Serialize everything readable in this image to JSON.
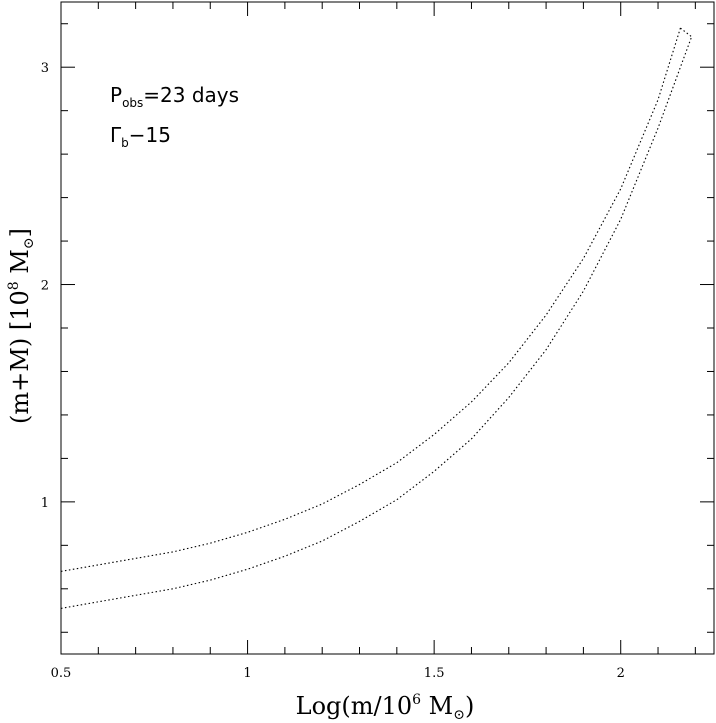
{
  "chart_data": {
    "type": "line",
    "title": "",
    "xlabel": {
      "text": "Log(m/10",
      "sup": "6",
      "text2": " M",
      "sub": "⊙",
      "text3": ")"
    },
    "ylabel": {
      "text": "(m+M)  [10",
      "sup": "8",
      "text2": " M",
      "sub": "⊙",
      "text3": "]"
    },
    "xlim": [
      0.5,
      2.25
    ],
    "ylim": [
      0.3,
      3.3
    ],
    "x_ticks": [
      "0.5",
      "1",
      "1.5",
      "2"
    ],
    "x_tick_values": [
      0.5,
      1.0,
      1.5,
      2.0
    ],
    "y_ticks": [
      "1",
      "2",
      "3"
    ],
    "y_tick_values": [
      1,
      2,
      3
    ],
    "line_style": "dotted",
    "annotations": [
      {
        "main": "P",
        "sub": "obs",
        "rest": "=23 days"
      },
      {
        "main": "Γ",
        "sub": "b",
        "rest": "−15"
      }
    ],
    "series": [
      {
        "x": [
          0.5,
          0.6,
          0.7,
          0.8,
          0.9,
          1.0,
          1.1,
          1.2,
          1.3,
          1.4,
          1.5,
          1.6,
          1.7,
          1.8,
          1.9,
          2.0,
          2.1,
          2.16
        ],
        "values": [
          0.68,
          0.71,
          0.74,
          0.77,
          0.81,
          0.86,
          0.92,
          0.99,
          1.08,
          1.18,
          1.31,
          1.46,
          1.64,
          1.86,
          2.12,
          2.44,
          2.85,
          3.18
        ]
      },
      {
        "x": [
          0.5,
          0.6,
          0.7,
          0.8,
          0.9,
          1.0,
          1.1,
          1.2,
          1.3,
          1.4,
          1.5,
          1.6,
          1.7,
          1.8,
          1.9,
          2.0,
          2.1,
          2.19
        ],
        "values": [
          0.51,
          0.54,
          0.57,
          0.6,
          0.64,
          0.69,
          0.75,
          0.82,
          0.91,
          1.01,
          1.14,
          1.29,
          1.48,
          1.7,
          1.97,
          2.3,
          2.72,
          3.14
        ]
      }
    ]
  }
}
